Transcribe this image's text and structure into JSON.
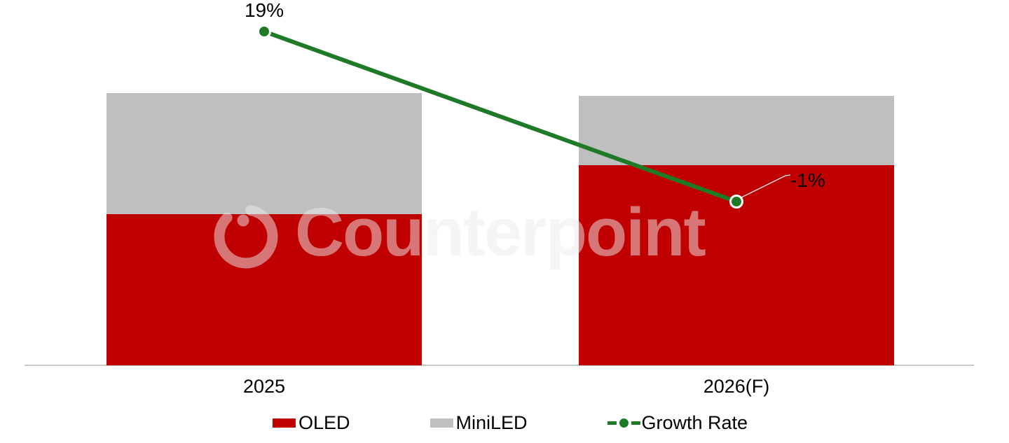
{
  "watermark": {
    "text": "Counterpoint",
    "logo": "counterpoint-ring-logo"
  },
  "chart_data": {
    "type": "combo",
    "subtypes": [
      "stacked-bar",
      "line"
    ],
    "title": "",
    "xlabel": "",
    "ylabel": "",
    "categories": [
      "2025",
      "2026(F)"
    ],
    "series": [
      {
        "name": "OLED",
        "type": "bar",
        "color": "#C00000",
        "values": [
          55.5,
          73.5
        ]
      },
      {
        "name": "MiniLED",
        "type": "bar",
        "color": "#BFBFBF",
        "values": [
          44.5,
          25.5
        ]
      },
      {
        "name": "Growth Rate",
        "type": "line",
        "color": "#1F7A28",
        "values": [
          19,
          -1
        ],
        "labels": [
          "19%",
          "-1%"
        ],
        "unit": "%"
      }
    ],
    "stacked_totals": [
      100,
      99
    ],
    "value_axis": {
      "visible": false,
      "range_relative_units": [
        0,
        110
      ]
    },
    "secondary_axis": {
      "visible": false,
      "unit": "%"
    },
    "grid": false,
    "legend": {
      "position": "bottom",
      "entries": [
        "OLED",
        "MiniLED",
        "Growth Rate"
      ]
    },
    "annotations": {
      "leader_line_color": "#D9D9D9",
      "axis_line_color": "#C8C8C8"
    }
  }
}
